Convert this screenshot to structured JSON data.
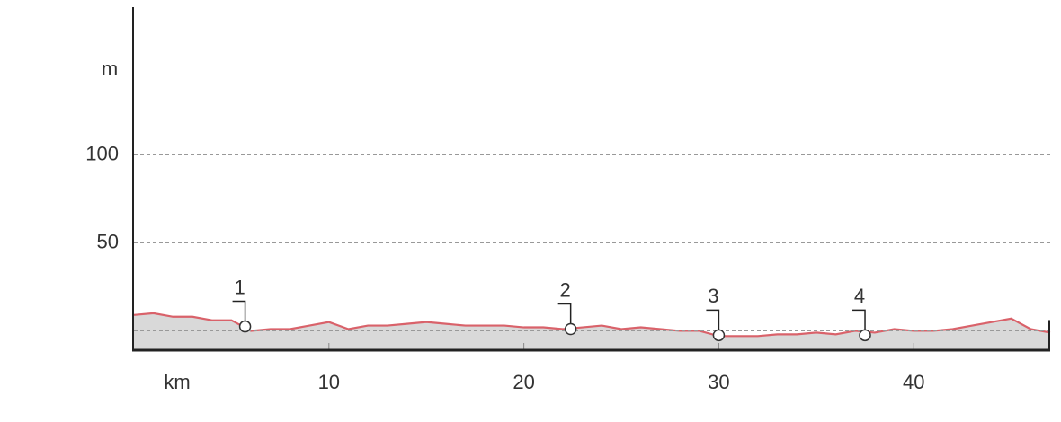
{
  "chart_data": {
    "type": "area",
    "y_label": "m",
    "x_label": "km",
    "xlim": [
      0,
      47
    ],
    "ylim": [
      -11,
      184
    ],
    "xticks": [
      10,
      20,
      30,
      40
    ],
    "yticks": [
      50,
      100
    ],
    "grid_y": [
      0,
      50,
      100
    ],
    "x": [
      0,
      1,
      2,
      3,
      4,
      5,
      6,
      7,
      8,
      9,
      10,
      11,
      12,
      13,
      14,
      15,
      16,
      17,
      18,
      19,
      20,
      21,
      22,
      23,
      24,
      25,
      26,
      27,
      28,
      29,
      30,
      31,
      32,
      33,
      34,
      35,
      36,
      37,
      38,
      39,
      40,
      41,
      42,
      43,
      44,
      45,
      46,
      47
    ],
    "series": [
      {
        "color": "#d9626a",
        "fill": "#d9d9d9",
        "values": [
          9,
          10,
          8,
          8,
          6,
          6,
          0,
          1,
          1,
          3,
          5,
          1,
          3,
          3,
          4,
          5,
          4,
          3,
          3,
          3,
          2,
          2,
          1,
          2,
          3,
          1,
          2,
          1,
          0,
          0,
          -3,
          -3,
          -3,
          -2,
          -2,
          -1,
          -2,
          0,
          -1,
          1,
          0,
          0,
          1,
          3,
          5,
          7,
          1,
          -1
        ]
      }
    ],
    "waypoints": {
      "labels": [
        "1",
        "2",
        "3",
        "4"
      ],
      "x": [
        5.7,
        22.4,
        30.0,
        37.5
      ],
      "values": [
        2.5,
        1,
        -2.5,
        -2.5
      ]
    }
  }
}
